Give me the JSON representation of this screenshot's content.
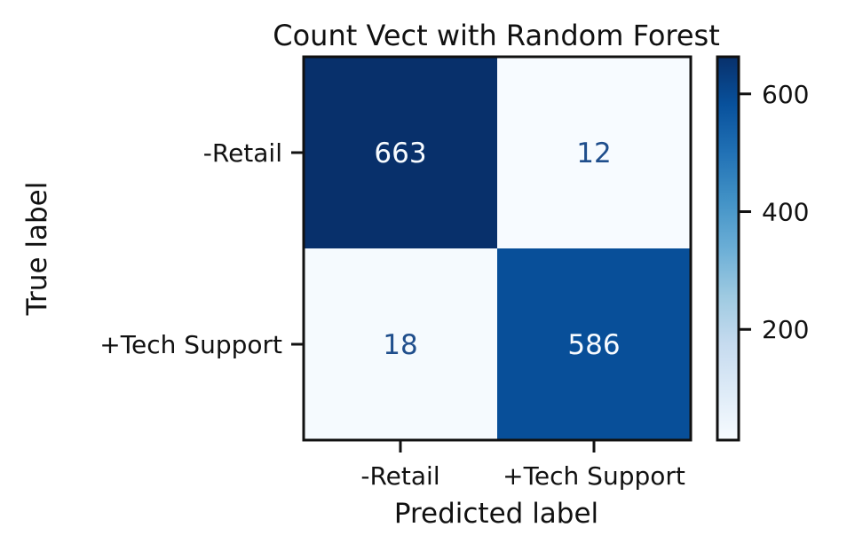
{
  "chart_data": {
    "type": "heatmap",
    "title": "Count Vect with Random Forest",
    "xlabel": "Predicted label",
    "ylabel": "True label",
    "x_categories": [
      "-Retail",
      "+Tech Support"
    ],
    "y_categories": [
      "-Retail",
      "+Tech Support"
    ],
    "matrix": [
      [
        663,
        12
      ],
      [
        18,
        586
      ]
    ],
    "colorbar": {
      "min": 12,
      "max": 663,
      "ticks": [
        200,
        400,
        600
      ],
      "colormap": "Blues"
    },
    "colors": {
      "dark": "#08306b",
      "high": "#08519c",
      "low": "#f7fbff",
      "text_light": "#f7fbff",
      "text_dark": "#1f4e8c"
    }
  }
}
